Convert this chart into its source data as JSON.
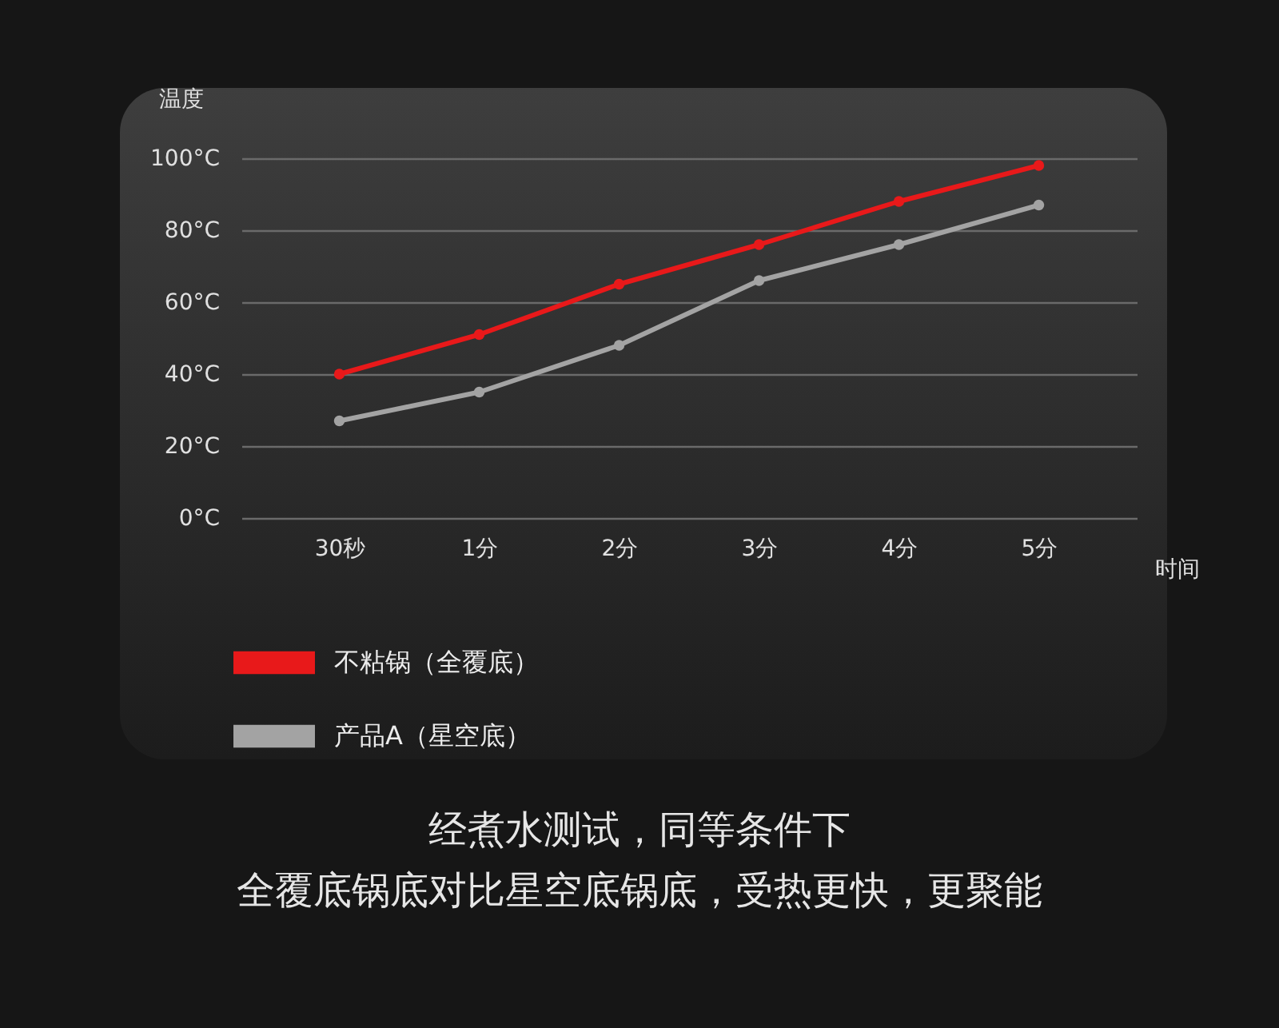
{
  "chart_data": {
    "type": "line",
    "xlabel": "时间",
    "ylabel": "温度",
    "categories": [
      "30秒",
      "1分",
      "2分",
      "3分",
      "4分",
      "5分"
    ],
    "series": [
      {
        "name": "不粘锅（全覆底）",
        "color": "#e8191a",
        "values": [
          40,
          51,
          65,
          76,
          88,
          98
        ]
      },
      {
        "name": "产品A（星空底）",
        "color": "#a3a3a3",
        "values": [
          27,
          35,
          48,
          66,
          76,
          87
        ]
      }
    ],
    "ylim": [
      0,
      100
    ],
    "yticks": [
      {
        "value": 0,
        "label": "0°C"
      },
      {
        "value": 20,
        "label": "20°C"
      },
      {
        "value": 40,
        "label": "40°C"
      },
      {
        "value": 60,
        "label": "60°C"
      },
      {
        "value": 80,
        "label": "80°C"
      },
      {
        "value": 100,
        "label": "100°C"
      }
    ],
    "grid": "y",
    "legend": "bottom left",
    "marker": "circle",
    "line_style": "solid",
    "annotations": [
      "经煮水测试，同等条件下",
      "全覆底锅底对比星空底锅底，受热更快，更聚能"
    ]
  }
}
